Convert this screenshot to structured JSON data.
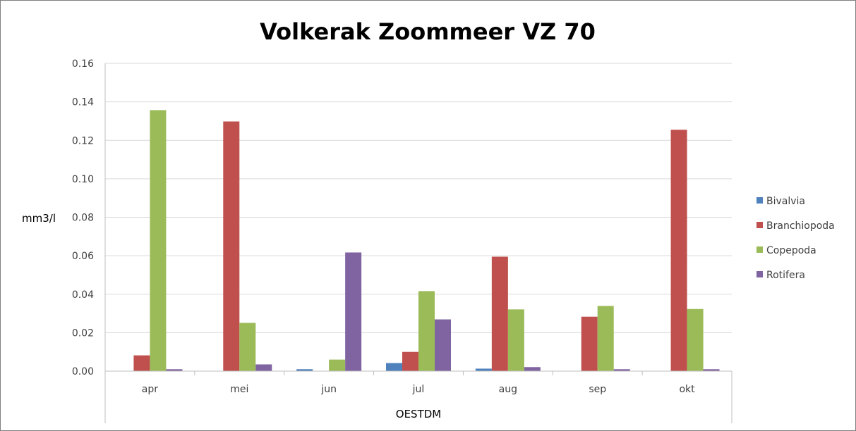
{
  "chart_data": {
    "type": "bar",
    "title": "Volkerak Zoommeer VZ 70",
    "xlabel": "OESTDM",
    "ylabel": "mm3/l",
    "ylim": [
      0,
      0.16
    ],
    "yticks": [
      "0.00",
      "0.02",
      "0.04",
      "0.06",
      "0.08",
      "0.10",
      "0.12",
      "0.14",
      "0.16"
    ],
    "categories": [
      "apr",
      "mei",
      "jun",
      "jul",
      "aug",
      "sep",
      "okt"
    ],
    "series": [
      {
        "name": "Bivalvia",
        "color": "#4f81bd",
        "values": [
          0,
          0,
          0.001,
          0.0042,
          0.0013,
          0,
          0
        ]
      },
      {
        "name": "Branchiopoda",
        "color": "#c0504d",
        "values": [
          0.0082,
          0.1298,
          0,
          0.01,
          0.0595,
          0.0283,
          0.1255
        ]
      },
      {
        "name": "Copepoda",
        "color": "#9bbb59",
        "values": [
          0.1357,
          0.0251,
          0.006,
          0.0416,
          0.0321,
          0.0339,
          0.0323
        ]
      },
      {
        "name": "Rotifera",
        "color": "#8064a2",
        "values": [
          0.001,
          0.0035,
          0.0617,
          0.0269,
          0.0021,
          0.001,
          0.001
        ]
      }
    ],
    "legend_position": "right",
    "grid": true
  }
}
